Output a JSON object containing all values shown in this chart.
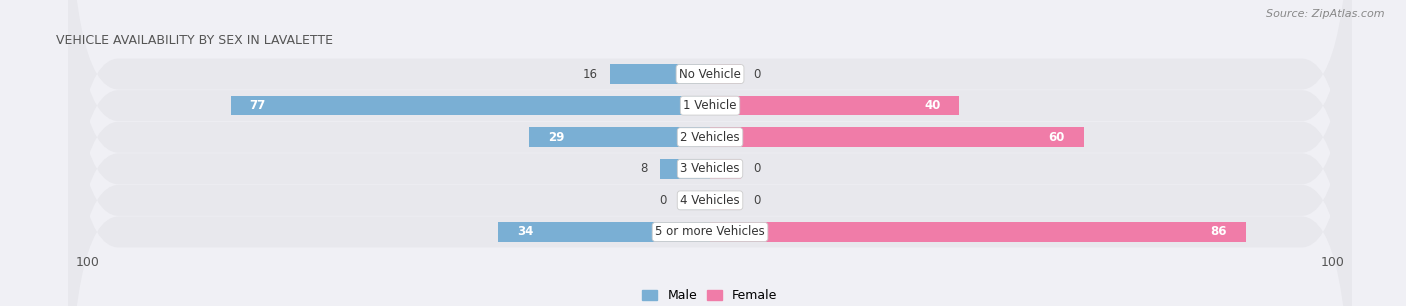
{
  "title": "VEHICLE AVAILABILITY BY SEX IN LAVALETTE",
  "source": "Source: ZipAtlas.com",
  "categories": [
    "No Vehicle",
    "1 Vehicle",
    "2 Vehicles",
    "3 Vehicles",
    "4 Vehicles",
    "5 or more Vehicles"
  ],
  "male_values": [
    16,
    77,
    29,
    8,
    0,
    34
  ],
  "female_values": [
    0,
    40,
    60,
    0,
    0,
    86
  ],
  "male_color": "#7aafd4",
  "female_color": "#f07ca8",
  "male_stub_color": "#aacce8",
  "female_stub_color": "#f5aac8",
  "max_val": 100,
  "bar_height": 0.62,
  "row_bg_color": "#e8e8ed",
  "fig_bg_color": "#f0f0f5",
  "figsize": [
    14.06,
    3.06
  ],
  "dpi": 100,
  "title_fontsize": 9,
  "label_fontsize": 8.5,
  "tick_fontsize": 9,
  "source_fontsize": 8
}
